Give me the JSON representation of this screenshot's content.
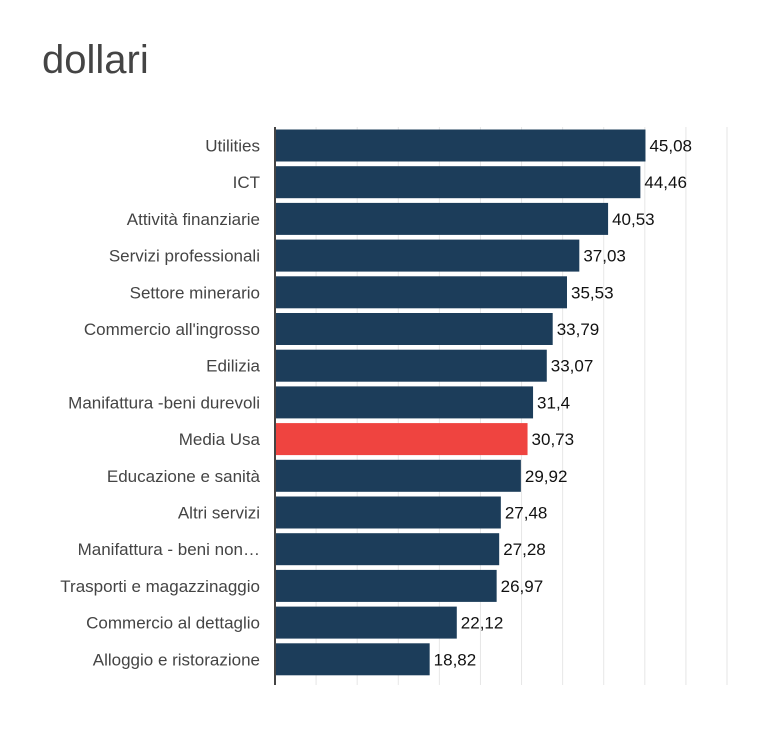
{
  "chart_data": {
    "type": "bar",
    "orientation": "horizontal",
    "title": "dollari",
    "categories": [
      "Utilities",
      "ICT",
      "Attività finanziarie",
      "Servizi professionali",
      "Settore minerario",
      "Commercio all'ingrosso",
      "Edilizia",
      "Manifattura -beni durevoli",
      "Media Usa",
      "Educazione e sanità",
      "Altri servizi",
      "Manifattura - beni non…",
      "Trasporti e magazzinaggio",
      "Commercio al dettaglio",
      "Alloggio e ristorazione"
    ],
    "values": [
      45.08,
      44.46,
      40.53,
      37.03,
      35.53,
      33.79,
      33.07,
      31.4,
      30.73,
      29.92,
      27.48,
      27.28,
      26.97,
      22.12,
      18.82
    ],
    "value_labels": [
      "45,08",
      "44,46",
      "40,53",
      "37,03",
      "35,53",
      "33,79",
      "33,07",
      "31,4",
      "30,73",
      "29,92",
      "27,48",
      "27,28",
      "26,97",
      "22,12",
      "18,82"
    ],
    "xlim": [
      0,
      55
    ],
    "grid": true,
    "colors": {
      "bar": "#1c3d5a",
      "highlight": "#ef4440",
      "grid": "#e6e6e6",
      "axis": "#444444"
    },
    "highlight_index": 8
  }
}
